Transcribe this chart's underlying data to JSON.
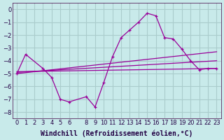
{
  "background_color": "#c8eaea",
  "grid_color": "#aacccc",
  "line_color": "#990099",
  "xlim": [
    -0.5,
    23.5
  ],
  "ylim": [
    -8.5,
    0.5
  ],
  "yticks": [
    0,
    -1,
    -2,
    -3,
    -4,
    -5,
    -6,
    -7,
    -8
  ],
  "xtick_labels": [
    "0",
    "1",
    "2",
    "3",
    "4",
    "5",
    "6",
    "",
    "8",
    "9",
    "10",
    "11",
    "12",
    "13",
    "14",
    "15",
    "16",
    "17",
    "18",
    "19",
    "20",
    "21",
    "22",
    "23"
  ],
  "xlabel": "Windchill (Refroidissement éolien,°C)",
  "xlabel_fontsize": 7,
  "tick_fontsize": 6,
  "main_line_x": [
    0,
    1,
    3,
    4,
    5,
    6,
    8,
    9,
    10,
    11,
    12,
    13,
    14,
    15,
    16,
    17,
    18,
    19,
    20,
    21,
    22,
    23
  ],
  "main_line_y": [
    -5.0,
    -3.5,
    -4.6,
    -5.3,
    -7.0,
    -7.2,
    -6.8,
    -7.6,
    -5.7,
    -3.7,
    -2.2,
    -1.6,
    -1.0,
    -0.3,
    -0.5,
    -2.2,
    -2.3,
    -3.1,
    -4.0,
    -4.7,
    -4.6,
    -4.6
  ],
  "trend1_x": [
    0,
    23
  ],
  "trend1_y": [
    -5.0,
    -3.3
  ],
  "trend2_x": [
    0,
    23
  ],
  "trend2_y": [
    -4.9,
    -4.0
  ],
  "trend3_x": [
    0,
    23
  ],
  "trend3_y": [
    -4.85,
    -4.6
  ]
}
